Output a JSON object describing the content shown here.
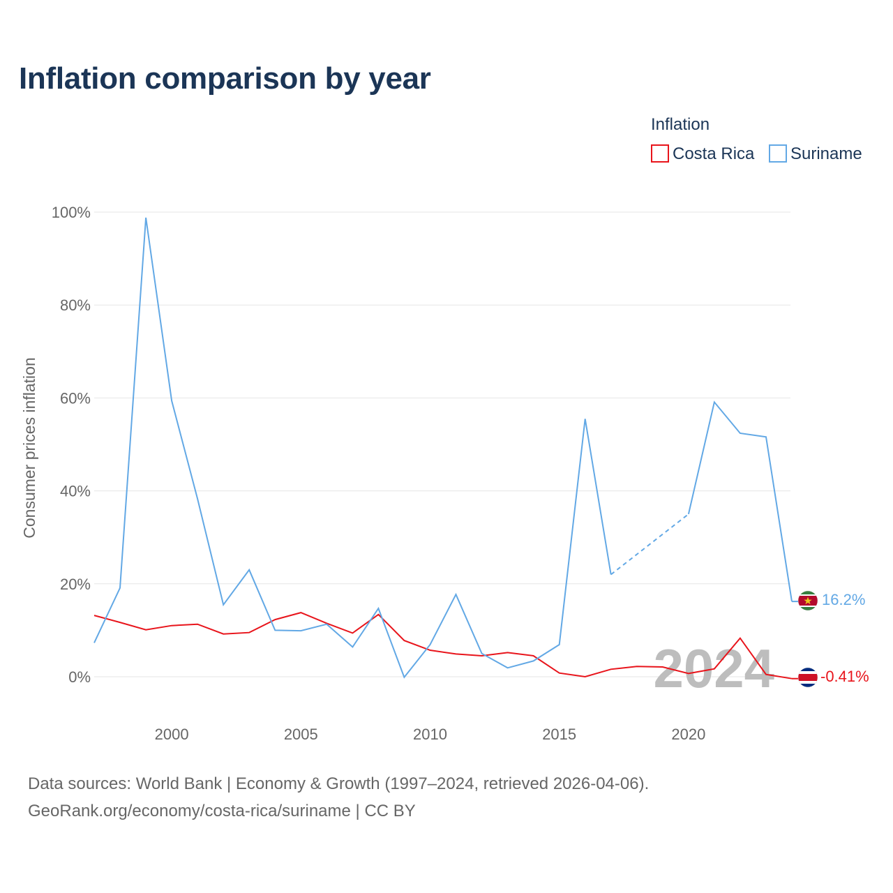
{
  "title": "Inflation comparison by year",
  "legend": {
    "title": "Inflation",
    "items": [
      {
        "label": "Costa Rica",
        "color": "#e8141b"
      },
      {
        "label": "Suriname",
        "color": "#62a8e5"
      }
    ]
  },
  "footer": {
    "line1": "Data sources: World Bank | Economy & Growth (1997–2024, retrieved 2026-04-06).",
    "line2": "GeoRank.org/economy/costa-rica/suriname | CC BY"
  },
  "chart_data": {
    "type": "line",
    "title": "Inflation comparison by year",
    "xlabel": "",
    "ylabel": "Consumer prices inflation",
    "xlim": [
      1997,
      2024
    ],
    "ylim": [
      -5,
      100
    ],
    "x_ticks": [
      2000,
      2005,
      2010,
      2015,
      2020
    ],
    "x_tick_labels": [
      "2000",
      "2005",
      "2010",
      "2015",
      "2020"
    ],
    "y_ticks": [
      0,
      20,
      40,
      60,
      80,
      100
    ],
    "y_tick_labels": [
      "0%",
      "20%",
      "40%",
      "60%",
      "80%",
      "100%"
    ],
    "grid": true,
    "legend_position": "top-right",
    "year_overlay": "2024",
    "x": [
      1997,
      1998,
      1999,
      2000,
      2001,
      2002,
      2003,
      2004,
      2005,
      2006,
      2007,
      2008,
      2009,
      2010,
      2011,
      2012,
      2013,
      2014,
      2015,
      2016,
      2017,
      2018,
      2019,
      2020,
      2021,
      2022,
      2023,
      2024
    ],
    "series": [
      {
        "name": "Costa Rica",
        "color": "#e8141b",
        "end_label": "-0.41%",
        "flag": "costa-rica-flag-icon",
        "values": [
          13.2,
          11.7,
          10.1,
          11.0,
          11.3,
          9.2,
          9.5,
          12.3,
          13.8,
          11.5,
          9.4,
          13.4,
          7.8,
          5.7,
          4.9,
          4.5,
          5.2,
          4.5,
          0.8,
          0.0,
          1.6,
          2.2,
          2.1,
          0.7,
          1.7,
          8.3,
          0.5,
          -0.41
        ]
      },
      {
        "name": "Suriname",
        "color": "#62a8e5",
        "end_label": "16.2%",
        "flag": "suriname-flag-icon",
        "values": [
          7.3,
          19.1,
          98.8,
          59.4,
          38.3,
          15.5,
          23.0,
          10.0,
          9.9,
          11.3,
          6.4,
          14.7,
          -0.1,
          6.9,
          17.7,
          5.0,
          1.9,
          3.4,
          6.9,
          55.5,
          22.0,
          null,
          null,
          35.0,
          59.1,
          52.4,
          51.6,
          16.2
        ]
      }
    ]
  }
}
